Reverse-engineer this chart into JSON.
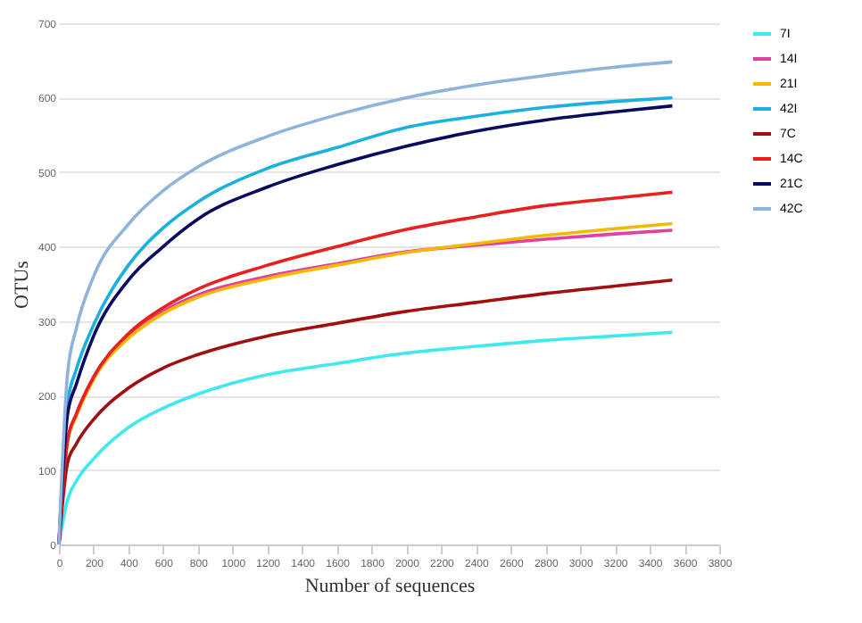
{
  "chart_data": {
    "type": "line",
    "xlabel": "Number of sequences",
    "ylabel": "OTUs",
    "x": [
      0,
      50,
      100,
      200,
      400,
      600,
      800,
      1200,
      1600,
      2000,
      2400,
      2800,
      3200,
      3530
    ],
    "series": [
      {
        "name": "7I",
        "color": "#40e8f0",
        "values": [
          0,
          60,
          85,
          115,
          157,
          183,
          202,
          228,
          243,
          257,
          266,
          274,
          280,
          285
        ]
      },
      {
        "name": "14I",
        "color": "#e040a0",
        "values": [
          0,
          140,
          175,
          225,
          280,
          313,
          335,
          360,
          377,
          393,
          402,
          410,
          417,
          422
        ]
      },
      {
        "name": "21I",
        "color": "#f5b800",
        "values": [
          0,
          138,
          172,
          222,
          277,
          310,
          332,
          357,
          375,
          392,
          404,
          415,
          424,
          431
        ]
      },
      {
        "name": "42I",
        "color": "#1ab0e0",
        "values": [
          0,
          190,
          235,
          295,
          375,
          425,
          460,
          505,
          533,
          560,
          575,
          587,
          595,
          600
        ]
      },
      {
        "name": "7C",
        "color": "#a01010",
        "values": [
          0,
          110,
          135,
          168,
          210,
          237,
          255,
          280,
          297,
          313,
          325,
          337,
          347,
          355
        ]
      },
      {
        "name": "14C",
        "color": "#e82020",
        "values": [
          0,
          140,
          175,
          225,
          283,
          318,
          343,
          375,
          400,
          423,
          440,
          455,
          465,
          473
        ]
      },
      {
        "name": "21C",
        "color": "#0a0a60",
        "values": [
          0,
          175,
          215,
          280,
          355,
          400,
          437,
          480,
          510,
          535,
          555,
          570,
          581,
          589
        ]
      },
      {
        "name": "42C",
        "color": "#8fb4dc",
        "values": [
          0,
          230,
          290,
          360,
          430,
          475,
          507,
          548,
          577,
          600,
          617,
          630,
          641,
          648
        ]
      }
    ],
    "xlim": [
      0,
      3800
    ],
    "xticks": [
      0,
      200,
      400,
      600,
      800,
      1000,
      1200,
      1400,
      1600,
      1800,
      2000,
      2200,
      2400,
      2600,
      2800,
      3000,
      3200,
      3400,
      3600,
      3800
    ],
    "ylim": [
      0,
      700
    ],
    "yticks": [
      0,
      100,
      200,
      300,
      400,
      500,
      600,
      700
    ],
    "grid": "y",
    "legend": "right",
    "marker": "none",
    "line_style": "solid"
  }
}
